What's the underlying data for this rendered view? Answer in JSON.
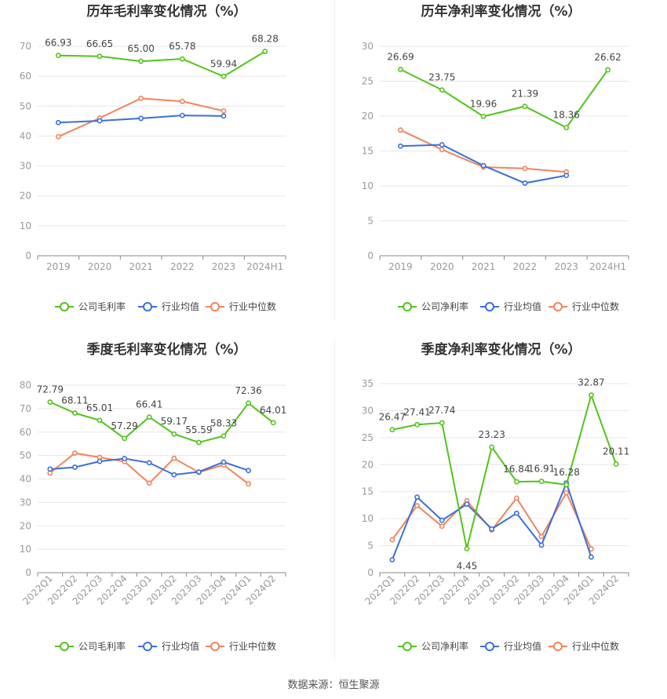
{
  "source": "数据来源：恒生聚源",
  "colors": {
    "company": "#52c41a",
    "avg": "#3a6fd8",
    "median": "#f0845c",
    "grid": "#e6e6e6",
    "axis": "#888888",
    "tick_text": "#999999",
    "title": "#333333"
  },
  "chart_data": [
    {
      "type": "line",
      "title": "历年毛利率变化情况（%）",
      "categories": [
        "2019",
        "2020",
        "2021",
        "2022",
        "2023",
        "2024H1"
      ],
      "ylim": [
        0,
        70
      ],
      "yticks": [
        0,
        10,
        20,
        30,
        40,
        50,
        60,
        70
      ],
      "grid": true,
      "legend_position": "bottom",
      "series": [
        {
          "name": "公司毛利率",
          "values": [
            66.93,
            66.65,
            65.0,
            65.78,
            59.94,
            68.28
          ],
          "labels": [
            "66.93",
            "66.65",
            "65.00",
            "65.78",
            "59.94",
            "68.28"
          ]
        },
        {
          "name": "行业均值",
          "values": [
            44.5,
            45.1,
            45.9,
            46.9,
            46.7,
            null
          ]
        },
        {
          "name": "行业中位数",
          "values": [
            39.8,
            46.0,
            52.6,
            51.6,
            48.4,
            null
          ]
        }
      ]
    },
    {
      "type": "line",
      "title": "历年净利率变化情况（%）",
      "categories": [
        "2019",
        "2020",
        "2021",
        "2022",
        "2023",
        "2024H1"
      ],
      "ylim": [
        0,
        30
      ],
      "yticks": [
        0,
        5,
        10,
        15,
        20,
        25,
        30
      ],
      "grid": true,
      "legend_position": "bottom",
      "series": [
        {
          "name": "公司净利率",
          "values": [
            26.69,
            23.75,
            19.96,
            21.39,
            18.36,
            26.62
          ],
          "labels": [
            "26.69",
            "23.75",
            "19.96",
            "21.39",
            "18.36",
            "26.62"
          ]
        },
        {
          "name": "行业均值",
          "values": [
            15.7,
            15.9,
            12.9,
            10.4,
            11.5,
            null
          ]
        },
        {
          "name": "行业中位数",
          "values": [
            18.0,
            15.2,
            12.7,
            12.5,
            12.0,
            null
          ]
        }
      ]
    },
    {
      "type": "line",
      "title": "季度毛利率变化情况（%）",
      "categories": [
        "2022Q1",
        "2022Q2",
        "2022Q3",
        "2022Q4",
        "2023Q1",
        "2023Q2",
        "2023Q3",
        "2023Q4",
        "2024Q1",
        "2024Q2"
      ],
      "ylim": [
        0,
        80
      ],
      "yticks": [
        0,
        10,
        20,
        30,
        40,
        50,
        60,
        70,
        80
      ],
      "grid": true,
      "legend_position": "bottom",
      "series": [
        {
          "name": "公司毛利率",
          "values": [
            72.79,
            68.11,
            65.01,
            57.29,
            66.41,
            59.17,
            55.59,
            58.33,
            72.36,
            64.01
          ],
          "labels": [
            "72.79",
            "68.11",
            "65.01",
            "57.29",
            "66.41",
            "59.17",
            "55.59",
            "58.33",
            "72.36",
            "64.01"
          ]
        },
        {
          "name": "行业均值",
          "values": [
            44.2,
            45.0,
            47.5,
            48.7,
            46.9,
            41.8,
            43.0,
            47.2,
            43.6,
            null
          ]
        },
        {
          "name": "行业中位数",
          "values": [
            42.5,
            51.0,
            49.2,
            47.4,
            38.2,
            48.8,
            42.8,
            46.0,
            37.9,
            null
          ]
        }
      ]
    },
    {
      "type": "line",
      "title": "季度净利率变化情况（%）",
      "categories": [
        "2022Q1",
        "2022Q2",
        "2022Q3",
        "2022Q4",
        "2023Q1",
        "2023Q2",
        "2023Q3",
        "2023Q4",
        "2024Q1",
        "2024Q2"
      ],
      "ylim": [
        0,
        35
      ],
      "yticks": [
        0,
        5,
        10,
        15,
        20,
        25,
        30,
        35
      ],
      "grid": true,
      "legend_position": "bottom",
      "series": [
        {
          "name": "公司净利率",
          "values": [
            26.47,
            27.41,
            27.74,
            4.45,
            23.23,
            16.84,
            16.91,
            16.28,
            32.87,
            20.11
          ],
          "labels": [
            "26.47",
            "27.41",
            "27.74",
            "4.45",
            "23.23",
            "16.84",
            "16.91",
            "16.28",
            "32.87",
            "20.11"
          ]
        },
        {
          "name": "行业均值",
          "values": [
            2.4,
            14.0,
            9.7,
            12.7,
            8.1,
            11.0,
            5.1,
            16.6,
            2.9,
            null
          ]
        },
        {
          "name": "行业中位数",
          "values": [
            6.1,
            12.4,
            8.6,
            13.3,
            7.9,
            13.8,
            6.7,
            14.8,
            4.4,
            null
          ]
        }
      ]
    }
  ]
}
